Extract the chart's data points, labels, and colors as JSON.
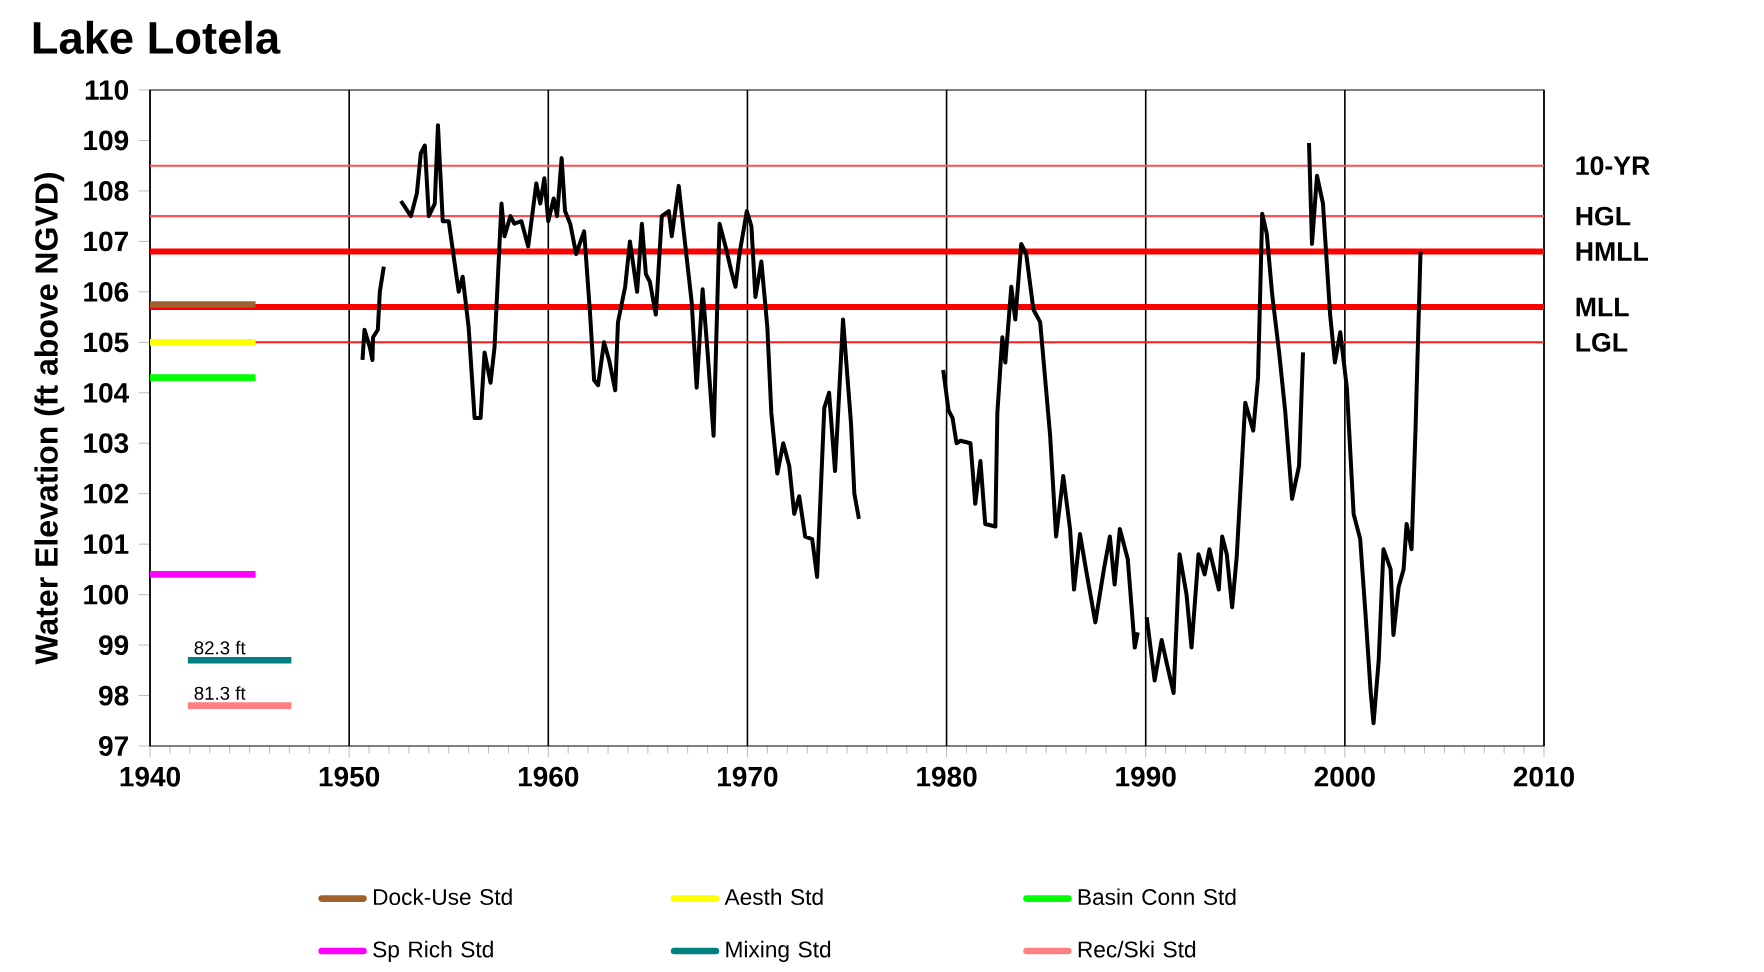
{
  "chart_data": {
    "type": "line",
    "title": "Lake Lotela",
    "ylabel": "Water Elevation (ft above NGVD)",
    "xlim": [
      1940,
      2010
    ],
    "xticks": [
      1940,
      1950,
      1960,
      1970,
      1980,
      1990,
      2000,
      2010
    ],
    "ylim": [
      97,
      110
    ],
    "yticks": [
      97,
      98,
      99,
      100,
      101,
      102,
      103,
      104,
      105,
      106,
      107,
      108,
      109,
      110
    ],
    "grid": "x",
    "legend": "bottom",
    "series": [
      {
        "color": "#000000",
        "x": [
          1950.67,
          1950.77,
          1951.04,
          1951.17,
          1951.2,
          1951.44,
          1951.54,
          1951.74,
          1952.2,
          1952.6,
          1953.1,
          1953.4,
          1953.6,
          1953.8,
          1954.0,
          1954.3,
          1954.46,
          1954.7,
          1955.0,
          1955.5,
          1955.7,
          1956.0,
          1956.3,
          1956.6,
          1956.8,
          1957.1,
          1957.3,
          1957.65,
          1957.8,
          1958.1,
          1958.3,
          1958.65,
          1958.99,
          1959.4,
          1959.6,
          1959.8,
          1960.0,
          1960.27,
          1960.44,
          1960.67,
          1960.84,
          1961.1,
          1961.4,
          1961.8,
          1962.1,
          1962.3,
          1962.5,
          1962.8,
          1963.05,
          1963.36,
          1963.5,
          1963.86,
          1964.1,
          1964.46,
          1964.7,
          1964.9,
          1965.1,
          1965.4,
          1965.7,
          1966.05,
          1966.2,
          1966.55,
          1966.8,
          1967.2,
          1967.45,
          1967.75,
          1968.0,
          1968.3,
          1968.6,
          1968.9,
          1969.2,
          1969.4,
          1969.6,
          1969.97,
          1970.2,
          1970.4,
          1970.7,
          1971.0,
          1971.2,
          1971.5,
          1971.8,
          1972.1,
          1972.35,
          1972.6,
          1972.9,
          1973.25,
          1973.5,
          1973.86,
          1974.1,
          1974.4,
          1974.8,
          1975.2,
          1975.37,
          1975.6,
          1977.8,
          1979.83,
          1980.1,
          1980.3,
          1980.5,
          1980.7,
          1981.2,
          1981.44,
          1981.7,
          1981.94,
          1982.45,
          1982.55,
          1982.8,
          1982.95,
          1983.25,
          1983.45,
          1983.75,
          1984.0,
          1984.36,
          1984.7,
          1985.2,
          1985.5,
          1985.86,
          1986.2,
          1986.4,
          1986.7,
          1987.0,
          1987.47,
          1987.9,
          1988.2,
          1988.44,
          1988.7,
          1989.1,
          1989.45,
          1989.6,
          1989.8,
          1990.05,
          1990.45,
          1990.8,
          1991.05,
          1991.4,
          1991.7,
          1992.05,
          1992.3,
          1992.65,
          1992.96,
          1993.2,
          1993.67,
          1993.84,
          1994.07,
          1994.34,
          1994.57,
          1995.0,
          1995.4,
          1995.64,
          1995.85,
          1996.08,
          1996.35,
          1996.7,
          1997.0,
          1997.35,
          1997.7,
          1997.9,
          1998.05,
          1998.2,
          1998.35,
          1998.6,
          1998.9,
          1999.26,
          1999.5,
          1999.77,
          2000.1,
          2000.44,
          2000.77,
          2001.04,
          2001.3,
          2001.44,
          2001.7,
          2001.94,
          2002.3,
          2002.44,
          2002.7,
          2002.95,
          2003.1,
          2003.35,
          2003.55,
          2003.8
        ],
        "values": [
          104.65,
          105.25,
          104.9,
          104.65,
          105.1,
          105.25,
          106.0,
          106.5,
          null,
          107.8,
          107.5,
          107.95,
          108.75,
          108.9,
          107.5,
          107.75,
          109.3,
          107.4,
          107.4,
          106.0,
          106.3,
          105.3,
          103.5,
          103.5,
          104.8,
          104.2,
          104.9,
          107.75,
          107.1,
          107.5,
          107.35,
          107.4,
          106.9,
          108.15,
          107.75,
          108.25,
          107.4,
          107.85,
          107.5,
          108.65,
          107.6,
          107.35,
          106.75,
          107.2,
          105.55,
          104.25,
          104.15,
          105.0,
          104.65,
          104.05,
          105.4,
          106.1,
          107.0,
          106.0,
          107.35,
          106.35,
          106.2,
          105.55,
          107.5,
          107.6,
          107.1,
          108.1,
          107.2,
          105.8,
          104.1,
          106.05,
          104.8,
          103.15,
          107.35,
          106.9,
          106.4,
          106.1,
          106.75,
          107.6,
          107.3,
          105.9,
          106.6,
          105.3,
          103.6,
          102.4,
          103.0,
          102.55,
          101.6,
          101.95,
          101.15,
          101.1,
          100.35,
          103.7,
          104.0,
          102.45,
          105.45,
          103.4,
          102.0,
          101.5,
          null,
          104.45,
          103.65,
          103.5,
          103.0,
          103.05,
          103.0,
          101.8,
          102.65,
          101.4,
          101.35,
          103.6,
          105.1,
          104.6,
          106.1,
          105.45,
          106.95,
          106.75,
          105.65,
          105.4,
          103.15,
          101.15,
          102.35,
          101.3,
          100.1,
          101.2,
          100.5,
          99.45,
          100.5,
          101.15,
          100.2,
          101.3,
          100.7,
          98.95,
          99.25,
          null,
          99.55,
          98.3,
          99.1,
          98.65,
          98.05,
          100.8,
          100.0,
          98.95,
          100.8,
          100.4,
          100.9,
          100.1,
          101.15,
          100.8,
          99.75,
          100.75,
          103.8,
          103.25,
          104.3,
          107.55,
          107.15,
          105.95,
          104.8,
          103.65,
          101.9,
          102.55,
          104.8,
          null,
          108.95,
          106.95,
          108.3,
          107.75,
          105.55,
          104.6,
          105.2,
          104.1,
          101.6,
          101.1,
          99.6,
          98.05,
          97.45,
          98.7,
          100.9,
          100.5,
          99.2,
          100.15,
          100.5,
          101.4,
          100.9,
          103.3,
          106.8
        ]
      },
      {
        "name": "Dock-Use Std",
        "color": "#a0622d",
        "x": [
          1940,
          1945.3
        ],
        "values": [
          105.75,
          105.75
        ]
      },
      {
        "name": "Aesth Std",
        "color": "#ffff00",
        "x": [
          1940,
          1945.3
        ],
        "values": [
          105.0,
          105.0
        ]
      },
      {
        "name": "Basin Conn Std",
        "color": "#00ff00",
        "x": [
          1940,
          1945.3
        ],
        "values": [
          104.3,
          104.3
        ]
      },
      {
        "name": "Sp Rich Std",
        "color": "#ff00ff",
        "x": [
          1940,
          1945.3
        ],
        "values": [
          100.4,
          100.4
        ]
      },
      {
        "name": "Mixing Std",
        "color": "#008080",
        "x": [
          1941.9,
          1947.1
        ],
        "values": [
          98.7,
          98.7
        ]
      },
      {
        "name": "Rec/Ski Std",
        "color": "#ff8080",
        "x": [
          1941.9,
          1947.1
        ],
        "values": [
          97.8,
          97.8
        ]
      }
    ],
    "ref_lines": [
      {
        "axis": "y",
        "value": 108.5,
        "label": "10-YR",
        "color": "#ff5050"
      },
      {
        "axis": "y",
        "value": 107.5,
        "label": "HGL",
        "color": "#ff5050"
      },
      {
        "axis": "y",
        "value": 106.8,
        "label": "HMLL",
        "color": "#ff0000"
      },
      {
        "axis": "y",
        "value": 105.7,
        "label": "MLL",
        "color": "#ff0000"
      },
      {
        "axis": "y",
        "value": 105.0,
        "label": "LGL",
        "color": "#ff1a1a"
      }
    ],
    "annotations": [
      {
        "text": "82.3 ft",
        "x": 1943.5,
        "y": 98.95
      },
      {
        "text": "81.3 ft",
        "x": 1943.5,
        "y": 98.05
      }
    ]
  }
}
